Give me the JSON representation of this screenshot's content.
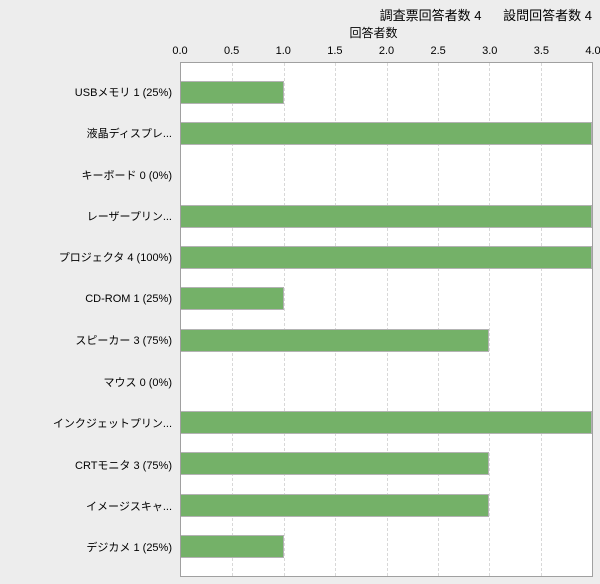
{
  "header": {
    "survey_label": "調査票回答者数",
    "survey_value": "4",
    "question_label": "設問回答者数",
    "question_value": "4"
  },
  "axis": {
    "title": "回答者数"
  },
  "colors": {
    "background": "#ededed",
    "plot_bg": "#ffffff",
    "plot_border": "#a0a0a0",
    "grid": "#d8d8d8",
    "bar_fill": "#74b168",
    "bar_border": "#b3b3b3",
    "text": "#000000"
  },
  "chart_data": {
    "type": "bar",
    "orientation": "horizontal",
    "title": "回答者数",
    "header_text": "調査票回答者数 4　設問回答者数 4",
    "categories": [
      "USBメモリ 1 (25%)",
      "液晶ディスプレ...",
      "キーボード 0 (0%)",
      "レーザープリン...",
      "プロジェクタ 4 (100%)",
      "CD-ROM 1 (25%)",
      "スピーカー 3 (75%)",
      "マウス 0 (0%)",
      "インクジェットプリン...",
      "CRTモニタ 3 (75%)",
      "イメージスキャ...",
      "デジカメ 1 (25%)"
    ],
    "values": [
      1,
      4,
      0,
      4,
      4,
      1,
      3,
      0,
      4,
      3,
      3,
      1
    ],
    "xlabel": "回答者数",
    "ylabel": "",
    "xlim": [
      0,
      4
    ],
    "x_ticks": [
      "0.0",
      "0.5",
      "1.0",
      "1.5",
      "2.0",
      "2.5",
      "3.0",
      "3.5",
      "4.0"
    ],
    "grid": "vertical-dashed",
    "legend": "none"
  }
}
